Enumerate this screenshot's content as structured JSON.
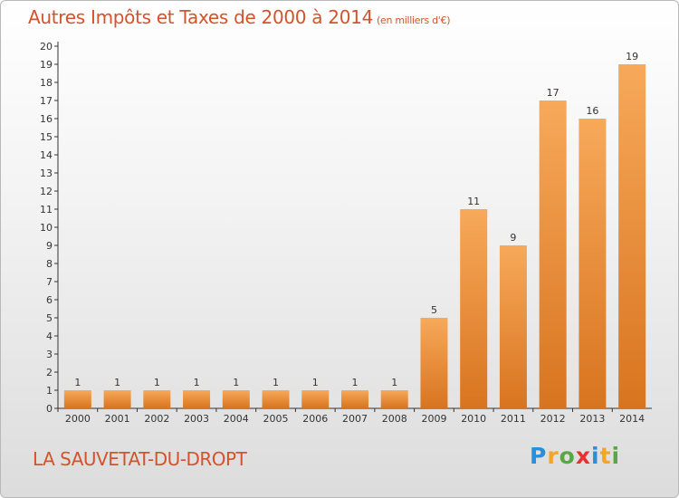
{
  "title": "Autres Impôts et Taxes de 2000 à 2014",
  "unit": "(en milliers d'€)",
  "commune": "LA SAUVETAT-DU-DROPT",
  "logo": {
    "letters": [
      "P",
      "r",
      "o",
      "x",
      "i",
      "t",
      "i"
    ],
    "colors": [
      "#2a8fd6",
      "#f5a623",
      "#57a845",
      "#e8312f",
      "#2a8fd6",
      "#f5a623",
      "#57a845"
    ]
  },
  "colors": {
    "accent": "#d2532c",
    "bar_light": "#f7a95a",
    "bar_dark": "#d8741f"
  },
  "chart_data": {
    "type": "bar",
    "categories": [
      "2000",
      "2001",
      "2002",
      "2003",
      "2004",
      "2005",
      "2006",
      "2007",
      "2008",
      "2009",
      "2010",
      "2011",
      "2012",
      "2013",
      "2014"
    ],
    "values": [
      1,
      1,
      1,
      1,
      1,
      1,
      1,
      1,
      1,
      5,
      11,
      9,
      17,
      16,
      19
    ],
    "ylim": [
      0,
      20
    ],
    "yticks": [
      0,
      1,
      2,
      3,
      4,
      5,
      6,
      7,
      8,
      9,
      10,
      11,
      12,
      13,
      14,
      15,
      16,
      17,
      18,
      19,
      20
    ],
    "grid": false,
    "legend": "none"
  }
}
